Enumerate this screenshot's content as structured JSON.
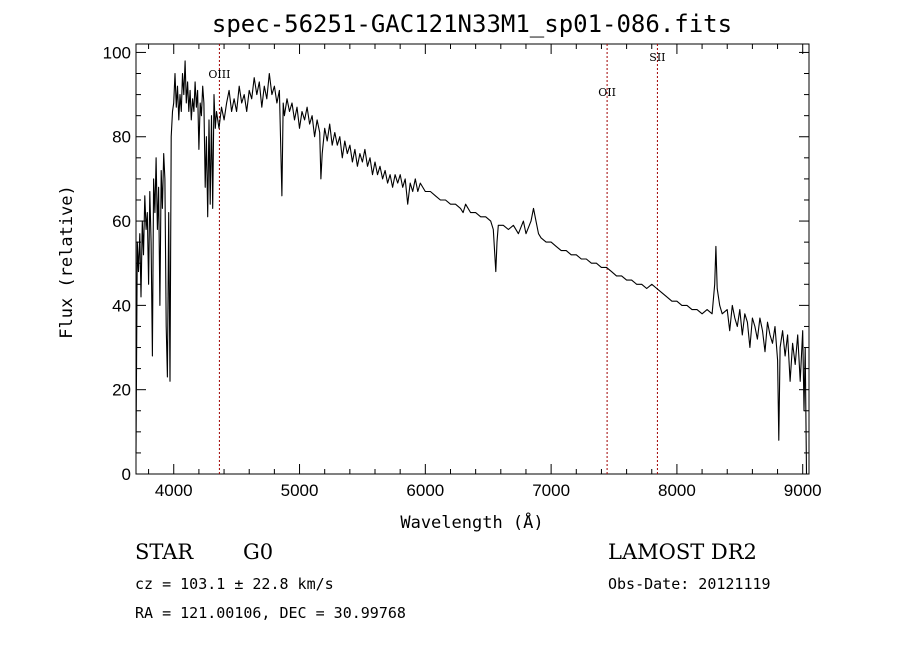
{
  "chart_data": {
    "type": "line",
    "title": "spec-56251-GAC121N33M1_sp01-086.fits",
    "xlabel": "Wavelength (Å)",
    "ylabel": "Flux (relative)",
    "xlim": [
      3700,
      9050
    ],
    "ylim": [
      0,
      102
    ],
    "xticks": [
      4000,
      5000,
      6000,
      7000,
      8000,
      9000
    ],
    "yticks": [
      0,
      20,
      40,
      60,
      80,
      100
    ],
    "grid": false,
    "series": [
      {
        "points": [
          [
            3700,
            5
          ],
          [
            3710,
            55
          ],
          [
            3720,
            48
          ],
          [
            3730,
            57
          ],
          [
            3740,
            42
          ],
          [
            3750,
            60
          ],
          [
            3760,
            52
          ],
          [
            3770,
            66
          ],
          [
            3780,
            58
          ],
          [
            3790,
            62
          ],
          [
            3800,
            45
          ],
          [
            3810,
            67
          ],
          [
            3820,
            55
          ],
          [
            3830,
            28
          ],
          [
            3840,
            70
          ],
          [
            3850,
            62
          ],
          [
            3860,
            75
          ],
          [
            3870,
            58
          ],
          [
            3880,
            68
          ],
          [
            3890,
            40
          ],
          [
            3900,
            72
          ],
          [
            3910,
            63
          ],
          [
            3920,
            76
          ],
          [
            3930,
            70
          ],
          [
            3940,
            35
          ],
          [
            3950,
            23
          ],
          [
            3960,
            62
          ],
          [
            3970,
            22
          ],
          [
            3980,
            80
          ],
          [
            3990,
            86
          ],
          [
            4000,
            88
          ],
          [
            4010,
            95
          ],
          [
            4020,
            87
          ],
          [
            4030,
            92
          ],
          [
            4040,
            84
          ],
          [
            4050,
            90
          ],
          [
            4060,
            86
          ],
          [
            4070,
            95
          ],
          [
            4080,
            90
          ],
          [
            4090,
            98
          ],
          [
            4100,
            88
          ],
          [
            4110,
            93
          ],
          [
            4120,
            86
          ],
          [
            4130,
            91
          ],
          [
            4140,
            84
          ],
          [
            4150,
            89
          ],
          [
            4160,
            86
          ],
          [
            4170,
            93
          ],
          [
            4180,
            87
          ],
          [
            4190,
            91
          ],
          [
            4200,
            77
          ],
          [
            4210,
            88
          ],
          [
            4220,
            85
          ],
          [
            4230,
            92
          ],
          [
            4240,
            88
          ],
          [
            4250,
            68
          ],
          [
            4260,
            80
          ],
          [
            4270,
            61
          ],
          [
            4280,
            84
          ],
          [
            4290,
            64
          ],
          [
            4300,
            85
          ],
          [
            4310,
            63
          ],
          [
            4320,
            90
          ],
          [
            4330,
            82
          ],
          [
            4340,
            86
          ],
          [
            4360,
            82
          ],
          [
            4380,
            87
          ],
          [
            4400,
            84
          ],
          [
            4420,
            88
          ],
          [
            4440,
            91
          ],
          [
            4460,
            86
          ],
          [
            4480,
            89
          ],
          [
            4500,
            86
          ],
          [
            4520,
            92
          ],
          [
            4540,
            88
          ],
          [
            4560,
            90
          ],
          [
            4580,
            86
          ],
          [
            4600,
            91
          ],
          [
            4620,
            89
          ],
          [
            4640,
            94
          ],
          [
            4660,
            90
          ],
          [
            4680,
            93
          ],
          [
            4700,
            87
          ],
          [
            4720,
            92
          ],
          [
            4740,
            89
          ],
          [
            4760,
            95
          ],
          [
            4780,
            90
          ],
          [
            4800,
            92
          ],
          [
            4820,
            88
          ],
          [
            4840,
            91
          ],
          [
            4860,
            66
          ],
          [
            4870,
            88
          ],
          [
            4880,
            85
          ],
          [
            4900,
            89
          ],
          [
            4920,
            86
          ],
          [
            4940,
            88
          ],
          [
            4960,
            84
          ],
          [
            4980,
            87
          ],
          [
            5000,
            82
          ],
          [
            5020,
            86
          ],
          [
            5040,
            84
          ],
          [
            5060,
            87
          ],
          [
            5080,
            83
          ],
          [
            5100,
            85
          ],
          [
            5120,
            80
          ],
          [
            5140,
            84
          ],
          [
            5160,
            81
          ],
          [
            5170,
            70
          ],
          [
            5180,
            76
          ],
          [
            5200,
            82
          ],
          [
            5220,
            79
          ],
          [
            5240,
            83
          ],
          [
            5260,
            78
          ],
          [
            5280,
            81
          ],
          [
            5300,
            78
          ],
          [
            5320,
            80
          ],
          [
            5340,
            75
          ],
          [
            5360,
            79
          ],
          [
            5380,
            76
          ],
          [
            5400,
            78
          ],
          [
            5420,
            74
          ],
          [
            5440,
            77
          ],
          [
            5460,
            73
          ],
          [
            5480,
            76
          ],
          [
            5500,
            74
          ],
          [
            5520,
            77
          ],
          [
            5540,
            73
          ],
          [
            5560,
            75
          ],
          [
            5580,
            71
          ],
          [
            5600,
            74
          ],
          [
            5620,
            71
          ],
          [
            5640,
            73
          ],
          [
            5660,
            70
          ],
          [
            5680,
            72
          ],
          [
            5700,
            69
          ],
          [
            5720,
            71
          ],
          [
            5740,
            68
          ],
          [
            5760,
            71
          ],
          [
            5780,
            69
          ],
          [
            5800,
            71
          ],
          [
            5820,
            68
          ],
          [
            5840,
            70
          ],
          [
            5860,
            64
          ],
          [
            5880,
            69
          ],
          [
            5900,
            67
          ],
          [
            5920,
            70
          ],
          [
            5940,
            67
          ],
          [
            5960,
            69
          ],
          [
            6000,
            67
          ],
          [
            6040,
            67
          ],
          [
            6080,
            66
          ],
          [
            6120,
            65
          ],
          [
            6160,
            65
          ],
          [
            6200,
            64
          ],
          [
            6240,
            64
          ],
          [
            6280,
            63
          ],
          [
            6300,
            62
          ],
          [
            6320,
            64
          ],
          [
            6360,
            62
          ],
          [
            6400,
            62
          ],
          [
            6440,
            61
          ],
          [
            6480,
            61
          ],
          [
            6520,
            60
          ],
          [
            6540,
            58
          ],
          [
            6560,
            48
          ],
          [
            6570,
            55
          ],
          [
            6580,
            59
          ],
          [
            6620,
            59
          ],
          [
            6660,
            58
          ],
          [
            6700,
            59
          ],
          [
            6740,
            57
          ],
          [
            6780,
            60
          ],
          [
            6800,
            57
          ],
          [
            6840,
            60
          ],
          [
            6860,
            63
          ],
          [
            6880,
            60
          ],
          [
            6900,
            57
          ],
          [
            6920,
            56
          ],
          [
            6960,
            55
          ],
          [
            7000,
            55
          ],
          [
            7040,
            54
          ],
          [
            7080,
            53
          ],
          [
            7120,
            53
          ],
          [
            7160,
            52
          ],
          [
            7200,
            52
          ],
          [
            7240,
            51
          ],
          [
            7280,
            51
          ],
          [
            7320,
            50
          ],
          [
            7360,
            50
          ],
          [
            7400,
            49
          ],
          [
            7440,
            49
          ],
          [
            7480,
            48
          ],
          [
            7520,
            47
          ],
          [
            7560,
            47
          ],
          [
            7600,
            46
          ],
          [
            7640,
            46
          ],
          [
            7680,
            45
          ],
          [
            7720,
            45
          ],
          [
            7760,
            44
          ],
          [
            7800,
            45
          ],
          [
            7840,
            44
          ],
          [
            7880,
            43
          ],
          [
            7920,
            42
          ],
          [
            7960,
            41
          ],
          [
            8000,
            41
          ],
          [
            8040,
            40
          ],
          [
            8080,
            40
          ],
          [
            8120,
            39
          ],
          [
            8160,
            39
          ],
          [
            8200,
            38
          ],
          [
            8240,
            39
          ],
          [
            8280,
            38
          ],
          [
            8300,
            45
          ],
          [
            8310,
            54
          ],
          [
            8320,
            44
          ],
          [
            8340,
            40
          ],
          [
            8360,
            38
          ],
          [
            8400,
            39
          ],
          [
            8420,
            34
          ],
          [
            8440,
            40
          ],
          [
            8460,
            37
          ],
          [
            8480,
            35
          ],
          [
            8500,
            39
          ],
          [
            8520,
            33
          ],
          [
            8540,
            38
          ],
          [
            8560,
            36
          ],
          [
            8580,
            30
          ],
          [
            8600,
            37
          ],
          [
            8620,
            35
          ],
          [
            8640,
            32
          ],
          [
            8660,
            37
          ],
          [
            8680,
            34
          ],
          [
            8700,
            29
          ],
          [
            8720,
            36
          ],
          [
            8740,
            33
          ],
          [
            8760,
            31
          ],
          [
            8780,
            35
          ],
          [
            8800,
            27
          ],
          [
            8810,
            8
          ],
          [
            8820,
            30
          ],
          [
            8840,
            34
          ],
          [
            8860,
            28
          ],
          [
            8880,
            33
          ],
          [
            8900,
            22
          ],
          [
            8920,
            31
          ],
          [
            8940,
            26
          ],
          [
            8960,
            33
          ],
          [
            8980,
            22
          ],
          [
            9000,
            34
          ],
          [
            9010,
            15
          ],
          [
            9020,
            30
          ],
          [
            9030,
            0
          ]
        ]
      }
    ],
    "lines": [
      {
        "label": "OIII",
        "x": 4363
      },
      {
        "label": "OII",
        "x": 7445
      },
      {
        "label": "SII",
        "x": 7845
      }
    ]
  },
  "info": {
    "class": "STAR",
    "subclass": "G0",
    "cz": "cz = 103.1 ± 22.8 km/s",
    "radec": "RA = 121.00106, DEC =  30.99768",
    "survey": "LAMOST DR2",
    "obsdate": "Obs-Date: 20121119"
  }
}
